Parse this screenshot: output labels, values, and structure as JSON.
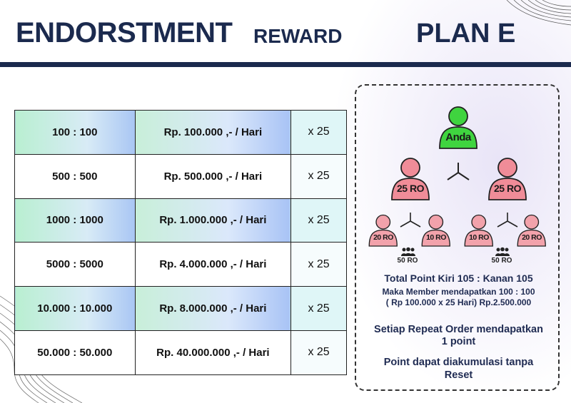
{
  "header": {
    "title_main": "ENDORSTMENT",
    "title_sub": "REWARD",
    "plan": "PLAN E"
  },
  "reward_table": {
    "rows": [
      {
        "ratio": "100 : 100",
        "amount": "Rp. 100.000 ,- / Hari",
        "multiplier": "x 25",
        "highlight": true
      },
      {
        "ratio": "500 : 500",
        "amount": "Rp. 500.000 ,- / Hari",
        "multiplier": "x 25",
        "highlight": false
      },
      {
        "ratio": "1000 : 1000",
        "amount": "Rp. 1.000.000 ,- / Hari",
        "multiplier": "x 25",
        "highlight": true
      },
      {
        "ratio": "5000 : 5000",
        "amount": "Rp. 4.000.000 ,- / Hari",
        "multiplier": "x 25",
        "highlight": false
      },
      {
        "ratio": "10.000 : 10.000",
        "amount": "Rp. 8.000.000 ,- / Hari",
        "multiplier": "x 25",
        "highlight": true
      },
      {
        "ratio": "50.000 : 50.000",
        "amount": "Rp. 40.000.000 ,- / Hari",
        "multiplier": "x 25",
        "highlight": false
      }
    ]
  },
  "plan_panel": {
    "root_label": "Anda",
    "left_child_label": "25 RO",
    "right_child_label": "25 RO",
    "leaf_labels": [
      "20 RO",
      "10 RO",
      "10 RO",
      "20 RO"
    ],
    "team_left_caption": "50 RO",
    "team_right_caption": "50 RO",
    "total_points": "Total Point Kiri 105 : Kanan 105",
    "result_line1": "Maka Member mendapatkan 100 : 100",
    "result_line2": "( Rp 100.000 x 25 Hari) Rp.2.500.000",
    "repeat_order_line1": "Setiap Repeat Order mendapatkan",
    "repeat_order_line2": "1 point",
    "accumulate_line1": "Point dapat diakumulasi tanpa",
    "accumulate_line2": "Reset"
  },
  "colors": {
    "navy": "#1b2a4e",
    "root_person": "#3fd43f",
    "child_person": "#f08c98",
    "leaf_person": "#f2a2ab"
  },
  "icons": [
    "person-icon",
    "team-icon",
    "connector-icon"
  ]
}
